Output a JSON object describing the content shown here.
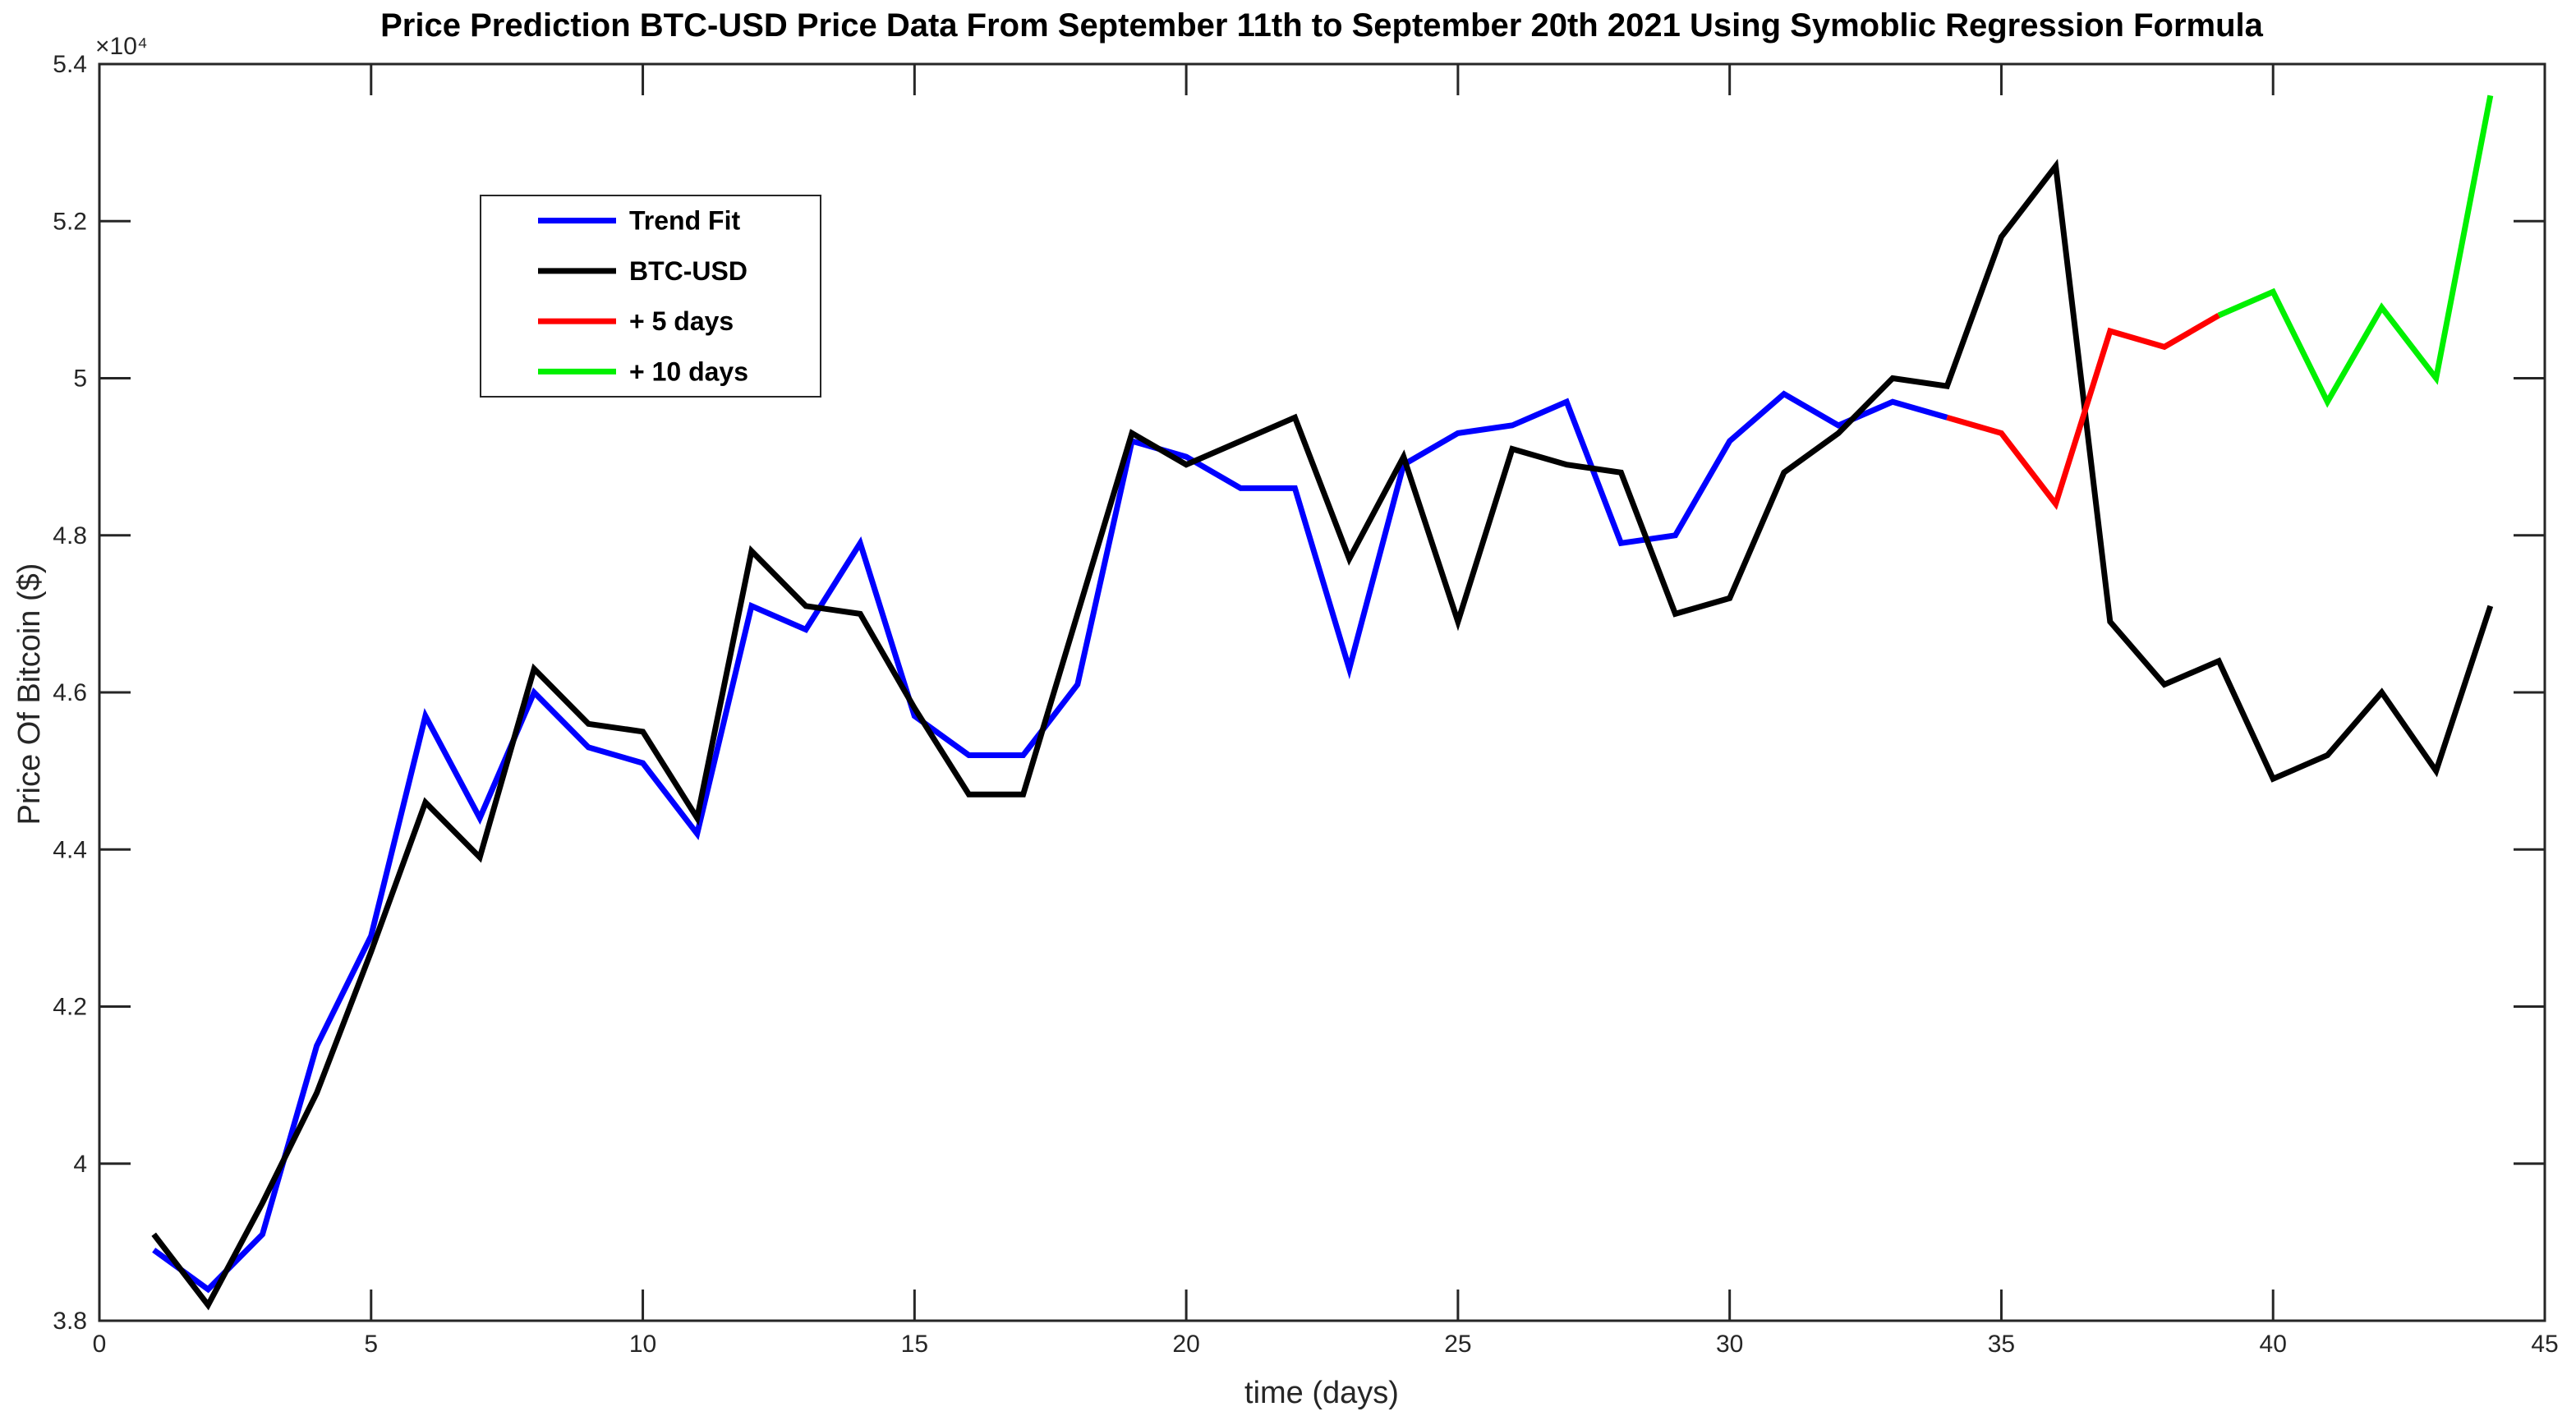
{
  "figure": {
    "background": "#FFFFFF",
    "frame_color": "#262626",
    "tick_label_color": "#262626"
  },
  "chart_data": {
    "type": "line",
    "title": "Price Prediction BTC-USD Price Data From September 11th to September 20th 2021 Using Symoblic Regression Formula",
    "xlabel": "time (days)",
    "ylabel": "Price Of Bitcoin ($)",
    "y_exponent_label": "×10⁴",
    "y_unit_multiplier": 10000,
    "xlim": [
      0,
      45
    ],
    "ylim": [
      3.8,
      5.4
    ],
    "grid": false,
    "x_ticks": {
      "values": [
        0,
        5,
        10,
        15,
        20,
        25,
        30,
        35,
        40,
        45
      ],
      "labels": [
        "0",
        "5",
        "10",
        "15",
        "20",
        "25",
        "30",
        "35",
        "40",
        "45"
      ]
    },
    "y_ticks": {
      "values": [
        3.8,
        4.0,
        4.2,
        4.4,
        4.6,
        4.8,
        5.0,
        5.2,
        5.4
      ],
      "labels": [
        "3.8",
        "4",
        "4.2",
        "4.4",
        "4.6",
        "4.8",
        "5",
        "5.2",
        "5.4"
      ]
    },
    "legend": {
      "position": "upper-left-inside",
      "items": [
        "Trend Fit",
        "BTC-USD",
        "+ 5 days",
        "+ 10 days"
      ]
    },
    "series": [
      {
        "name": "Trend Fit",
        "color": "#0000FF",
        "x": [
          1,
          2,
          3,
          4,
          5,
          6,
          7,
          8,
          9,
          10,
          11,
          12,
          13,
          14,
          15,
          16,
          17,
          18,
          19,
          20,
          21,
          22,
          23,
          24,
          25,
          26,
          27,
          28,
          29,
          30,
          31,
          32,
          33,
          34
        ],
        "y": [
          3.89,
          3.84,
          3.91,
          4.15,
          4.29,
          4.57,
          4.44,
          4.6,
          4.53,
          4.51,
          4.42,
          4.71,
          4.68,
          4.79,
          4.57,
          4.52,
          4.52,
          4.61,
          4.92,
          4.9,
          4.86,
          4.86,
          4.63,
          4.89,
          4.93,
          4.94,
          4.97,
          4.79,
          4.8,
          4.92,
          4.98,
          4.94,
          4.97,
          4.95
        ]
      },
      {
        "name": "BTC-USD",
        "color": "#000000",
        "x": [
          1,
          2,
          3,
          4,
          5,
          6,
          7,
          8,
          9,
          10,
          11,
          12,
          13,
          14,
          15,
          16,
          17,
          18,
          19,
          20,
          21,
          22,
          23,
          24,
          25,
          26,
          27,
          28,
          29,
          30,
          31,
          32,
          33,
          34,
          35,
          36,
          37,
          38,
          39,
          40,
          41,
          42,
          43,
          44
        ],
        "y": [
          3.91,
          3.82,
          3.95,
          4.09,
          4.27,
          4.46,
          4.39,
          4.63,
          4.56,
          4.55,
          4.44,
          4.78,
          4.71,
          4.7,
          4.58,
          4.47,
          4.47,
          4.7,
          4.93,
          4.89,
          4.92,
          4.95,
          4.77,
          4.9,
          4.69,
          4.91,
          4.89,
          4.88,
          4.7,
          4.72,
          4.88,
          4.93,
          5.0,
          4.99,
          5.18,
          5.27,
          4.69,
          4.61,
          4.64,
          4.49,
          4.52,
          4.6,
          4.5,
          4.71
        ]
      },
      {
        "name": "+ 5 days",
        "color": "#FF0000",
        "x": [
          34,
          35,
          36,
          37,
          38,
          39
        ],
        "y": [
          4.95,
          4.93,
          4.84,
          5.06,
          5.04,
          5.08
        ]
      },
      {
        "name": "+ 10 days",
        "color": "#00F000",
        "x": [
          39,
          40,
          41,
          42,
          43,
          44
        ],
        "y": [
          5.08,
          5.11,
          4.97,
          5.09,
          5.0,
          5.36
        ]
      }
    ]
  }
}
